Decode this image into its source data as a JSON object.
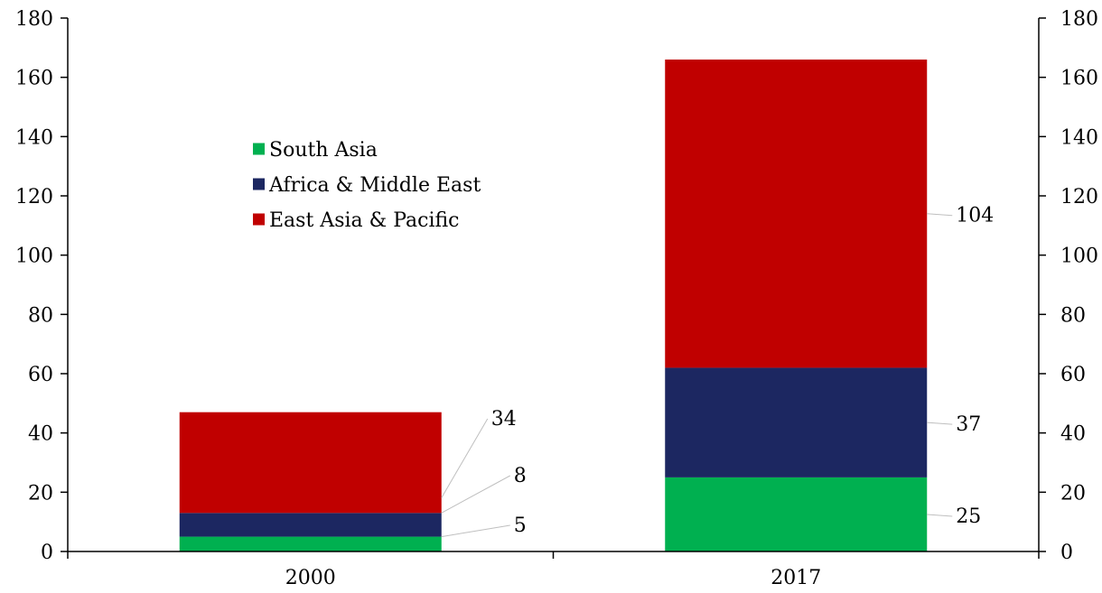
{
  "chart_data": {
    "type": "bar",
    "stacked": true,
    "categories": [
      "2000",
      "2017"
    ],
    "series": [
      {
        "name": "South Asia",
        "values": [
          5,
          25
        ],
        "color": "#00B050"
      },
      {
        "name": "Africa & Middle East",
        "values": [
          8,
          37
        ],
        "color": "#1C2761"
      },
      {
        "name": "East Asia & Pacific",
        "values": [
          34,
          104
        ],
        "color": "#C00000"
      }
    ],
    "ylim": [
      0,
      180
    ],
    "yticks": [
      0,
      20,
      40,
      60,
      80,
      100,
      120,
      140,
      160,
      180
    ],
    "secondary_axis": true,
    "grid": false,
    "legend_position": "upper-left"
  }
}
